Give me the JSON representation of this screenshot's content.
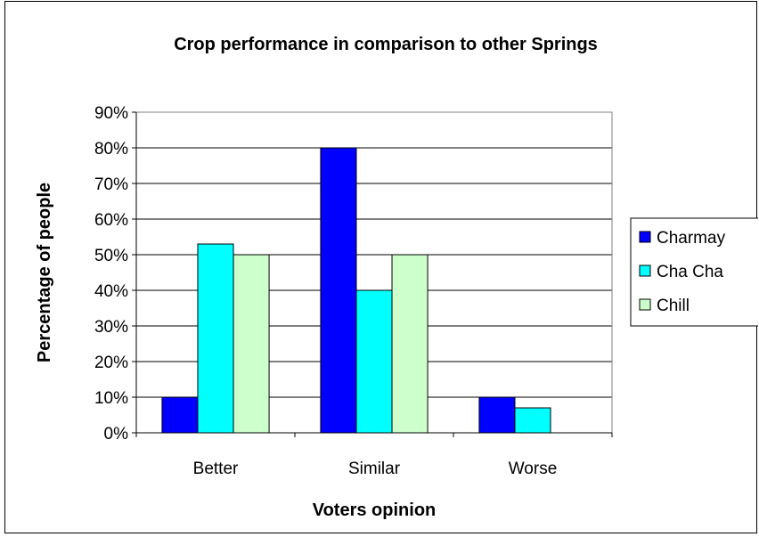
{
  "chart_data": {
    "type": "bar",
    "title": "Crop performance in comparison to other Springs",
    "xlabel": "Voters opinion",
    "ylabel": "Percentage of people",
    "categories": [
      "Better",
      "Similar",
      "Worse"
    ],
    "series": [
      {
        "name": "Charmay",
        "values": [
          10,
          80,
          10
        ],
        "color": "#0000FF"
      },
      {
        "name": "Cha Cha",
        "values": [
          53,
          40,
          7
        ],
        "color": "#00FFFF"
      },
      {
        "name": "Chill",
        "values": [
          50,
          50,
          0
        ],
        "color": "#CCFFCC"
      }
    ],
    "ylim": [
      0,
      90
    ],
    "yticks": [
      "0%",
      "10%",
      "20%",
      "30%",
      "40%",
      "50%",
      "60%",
      "70%",
      "80%",
      "90%"
    ],
    "grid": true,
    "plot_background": "#ffffff",
    "legend_position": "right"
  }
}
